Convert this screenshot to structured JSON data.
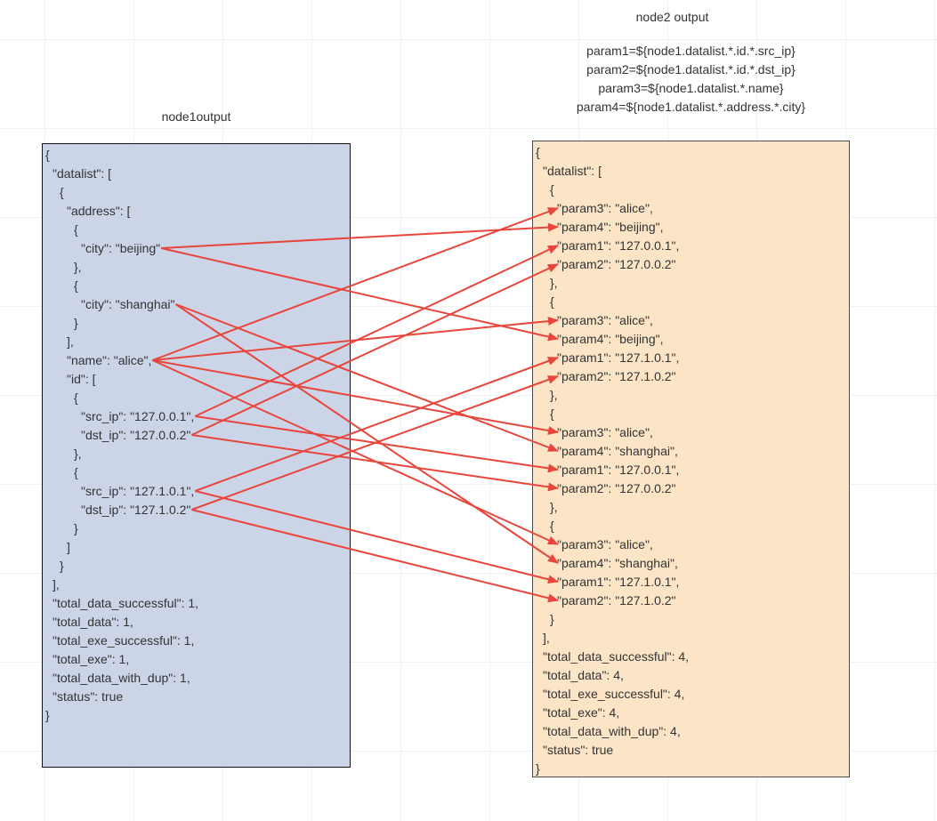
{
  "canvas": {
    "background": "#ffffff",
    "grid_color": "#f1f1f1"
  },
  "left_box": {
    "title": "node1output",
    "fill": "#ccd5e8",
    "border": "#111111",
    "lines": [
      {
        "indent": 0,
        "text": "{"
      },
      {
        "indent": 1,
        "text": "\"datalist\": ["
      },
      {
        "indent": 2,
        "text": "{"
      },
      {
        "indent": 3,
        "text": "\"address\": ["
      },
      {
        "indent": 4,
        "text": "{"
      },
      {
        "indent": 5,
        "text": "\"city\": \"beijing\"",
        "id": "beijing"
      },
      {
        "indent": 4,
        "text": "},"
      },
      {
        "indent": 4,
        "text": "{"
      },
      {
        "indent": 5,
        "text": "\"city\": \"shanghai\"",
        "id": "shanghai"
      },
      {
        "indent": 4,
        "text": "}"
      },
      {
        "indent": 3,
        "text": "],"
      },
      {
        "indent": 3,
        "text": "\"name\": \"alice\",",
        "id": "alice"
      },
      {
        "indent": 3,
        "text": "\"id\": ["
      },
      {
        "indent": 4,
        "text": "{"
      },
      {
        "indent": 5,
        "text": "\"src_ip\": \"127.0.0.1\",",
        "id": "src1"
      },
      {
        "indent": 5,
        "text": "\"dst_ip\": \"127.0.0.2\"",
        "id": "dst1"
      },
      {
        "indent": 4,
        "text": "},"
      },
      {
        "indent": 4,
        "text": "{"
      },
      {
        "indent": 5,
        "text": "\"src_ip\": \"127.1.0.1\",",
        "id": "src2"
      },
      {
        "indent": 5,
        "text": "\"dst_ip\": \"127.1.0.2\"",
        "id": "dst2"
      },
      {
        "indent": 4,
        "text": "}"
      },
      {
        "indent": 3,
        "text": "]"
      },
      {
        "indent": 2,
        "text": "}"
      },
      {
        "indent": 1,
        "text": "],"
      },
      {
        "indent": 1,
        "text": "\"total_data_successful\": 1,"
      },
      {
        "indent": 1,
        "text": "\"total_data\": 1,"
      },
      {
        "indent": 1,
        "text": "\"total_exe_successful\": 1,"
      },
      {
        "indent": 1,
        "text": "\"total_exe\": 1,"
      },
      {
        "indent": 1,
        "text": "\"total_data_with_dup\": 1,"
      },
      {
        "indent": 1,
        "text": "\"status\": true"
      },
      {
        "indent": 0,
        "text": "}"
      }
    ]
  },
  "right_box": {
    "title": "node2 output",
    "fill": "#fce4c6",
    "border": "#4a4a4a",
    "mappings": [
      "param1=${node1.datalist.*.id.*.src_ip}",
      "param2=${node1.datalist.*.id.*.dst_ip}",
      "param3=${node1.datalist.*.name}",
      "param4=${node1.datalist.*.address.*.city}"
    ],
    "lines": [
      {
        "indent": 0,
        "text": "{"
      },
      {
        "indent": 1,
        "text": "\"datalist\": ["
      },
      {
        "indent": 2,
        "text": "{"
      },
      {
        "indent": 3,
        "text": "\"param3\": \"alice\",",
        "id": "p3_1"
      },
      {
        "indent": 3,
        "text": "\"param4\": \"beijing\",",
        "id": "p4_1"
      },
      {
        "indent": 3,
        "text": "\"param1\": \"127.0.0.1\",",
        "id": "p1_1"
      },
      {
        "indent": 3,
        "text": "\"param2\": \"127.0.0.2\"",
        "id": "p2_1"
      },
      {
        "indent": 2,
        "text": "},"
      },
      {
        "indent": 2,
        "text": "{"
      },
      {
        "indent": 3,
        "text": "\"param3\": \"alice\",",
        "id": "p3_2"
      },
      {
        "indent": 3,
        "text": "\"param4\": \"beijing\",",
        "id": "p4_2"
      },
      {
        "indent": 3,
        "text": "\"param1\": \"127.1.0.1\",",
        "id": "p1_2"
      },
      {
        "indent": 3,
        "text": "\"param2\": \"127.1.0.2\"",
        "id": "p2_2"
      },
      {
        "indent": 2,
        "text": "},"
      },
      {
        "indent": 2,
        "text": "{"
      },
      {
        "indent": 3,
        "text": "\"param3\": \"alice\",",
        "id": "p3_3"
      },
      {
        "indent": 3,
        "text": "\"param4\": \"shanghai\",",
        "id": "p4_3"
      },
      {
        "indent": 3,
        "text": "\"param1\": \"127.0.0.1\",",
        "id": "p1_3"
      },
      {
        "indent": 3,
        "text": "\"param2\": \"127.0.0.2\"",
        "id": "p2_3"
      },
      {
        "indent": 2,
        "text": "},"
      },
      {
        "indent": 2,
        "text": "{"
      },
      {
        "indent": 3,
        "text": "\"param3\": \"alice\",",
        "id": "p3_4"
      },
      {
        "indent": 3,
        "text": "\"param4\": \"shanghai\",",
        "id": "p4_4"
      },
      {
        "indent": 3,
        "text": "\"param1\": \"127.1.0.1\",",
        "id": "p1_4"
      },
      {
        "indent": 3,
        "text": "\"param2\": \"127.1.0.2\"",
        "id": "p2_4"
      },
      {
        "indent": 2,
        "text": "}"
      },
      {
        "indent": 1,
        "text": "],"
      },
      {
        "indent": 1,
        "text": "\"total_data_successful\": 4,"
      },
      {
        "indent": 1,
        "text": "\"total_data\": 4,"
      },
      {
        "indent": 1,
        "text": "\"total_exe_successful\": 4,"
      },
      {
        "indent": 1,
        "text": "\"total_exe\": 4,"
      },
      {
        "indent": 1,
        "text": "\"total_data_with_dup\": 4,"
      },
      {
        "indent": 1,
        "text": "\"status\": true"
      },
      {
        "indent": 0,
        "text": "}"
      }
    ]
  },
  "arrows": {
    "color": "#e8463c",
    "links": [
      {
        "from": "alice",
        "to": "p3_1"
      },
      {
        "from": "beijing",
        "to": "p4_1"
      },
      {
        "from": "src1",
        "to": "p1_1"
      },
      {
        "from": "dst1",
        "to": "p2_1"
      },
      {
        "from": "alice",
        "to": "p3_2"
      },
      {
        "from": "beijing",
        "to": "p4_2"
      },
      {
        "from": "src2",
        "to": "p1_2"
      },
      {
        "from": "dst2",
        "to": "p2_2"
      },
      {
        "from": "alice",
        "to": "p3_3"
      },
      {
        "from": "shanghai",
        "to": "p4_3"
      },
      {
        "from": "src1",
        "to": "p1_3"
      },
      {
        "from": "dst1",
        "to": "p2_3"
      },
      {
        "from": "alice",
        "to": "p3_4"
      },
      {
        "from": "shanghai",
        "to": "p4_4"
      },
      {
        "from": "src2",
        "to": "p1_4"
      },
      {
        "from": "dst2",
        "to": "p2_4"
      }
    ]
  }
}
